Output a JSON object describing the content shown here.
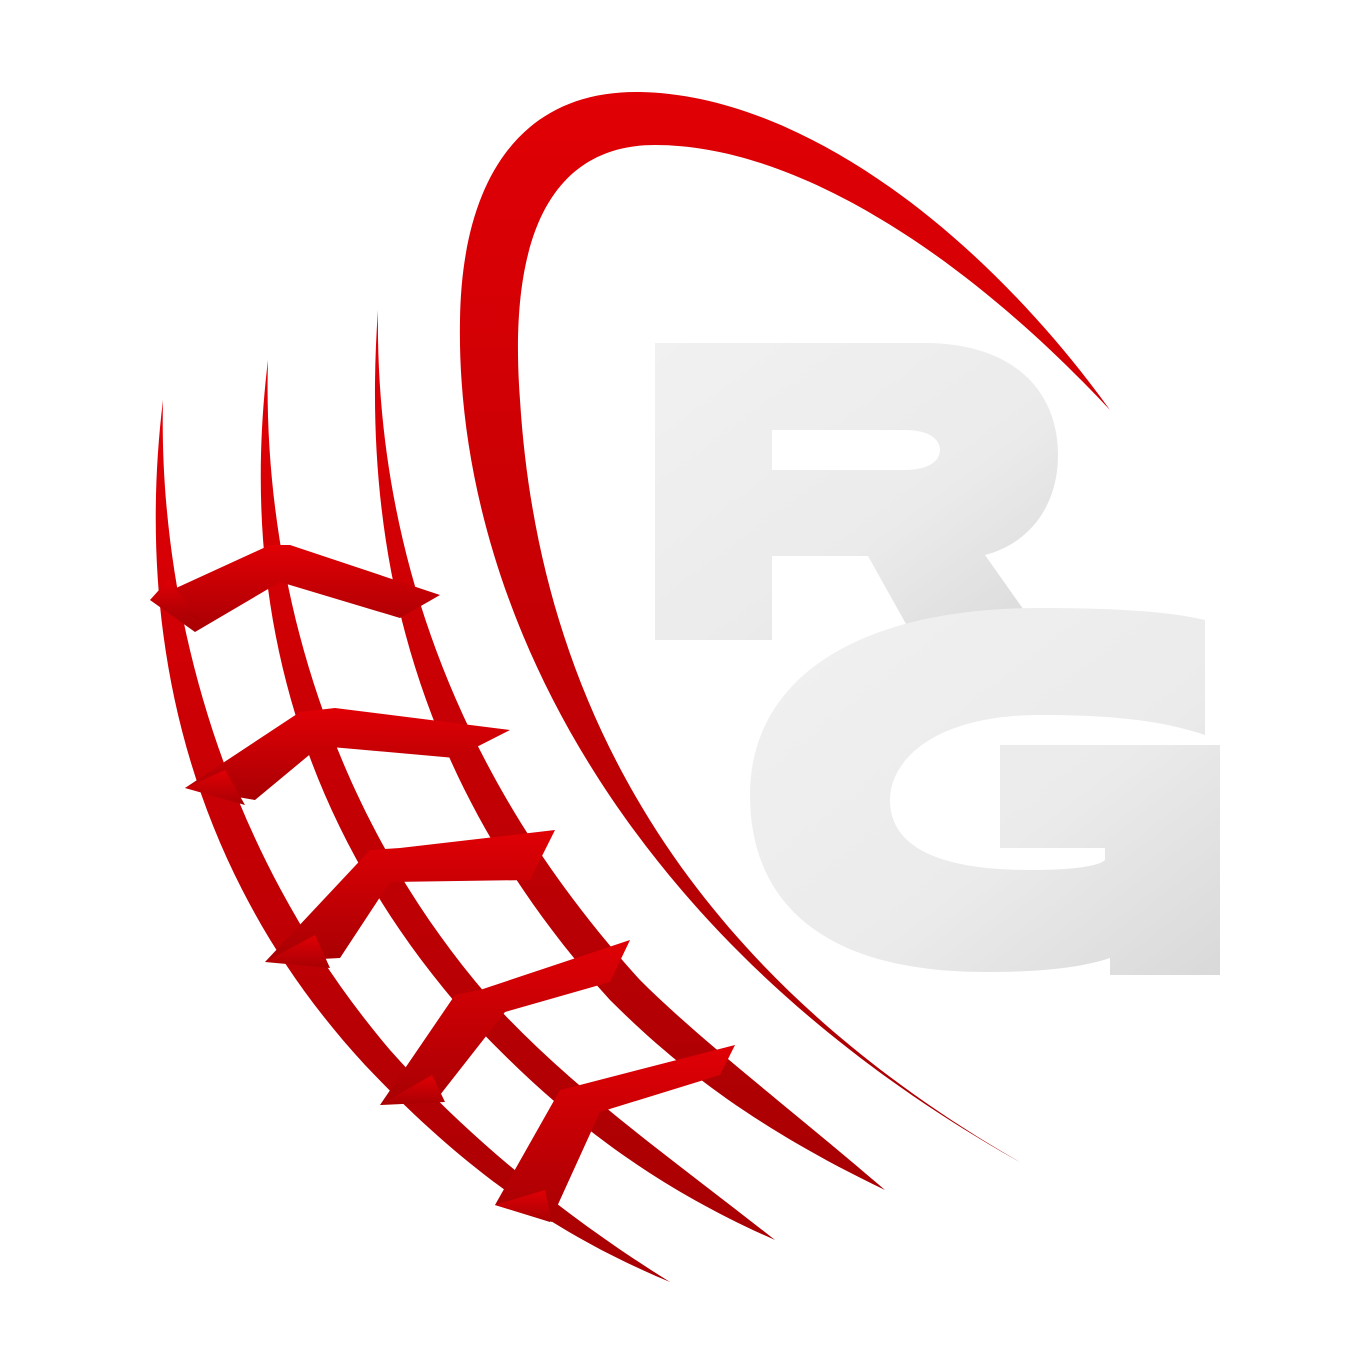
{
  "logo": {
    "monogram_letters": [
      "R",
      "G"
    ],
    "mark_description": "tire-tread-swoosh-icon"
  },
  "colors": {
    "background": "#ffffff",
    "tread_red_light": "#e00005",
    "tread_red_dark": "#a80003",
    "letter_gray_light": "#efefef",
    "letter_gray_dark": "#d8d8d8"
  }
}
